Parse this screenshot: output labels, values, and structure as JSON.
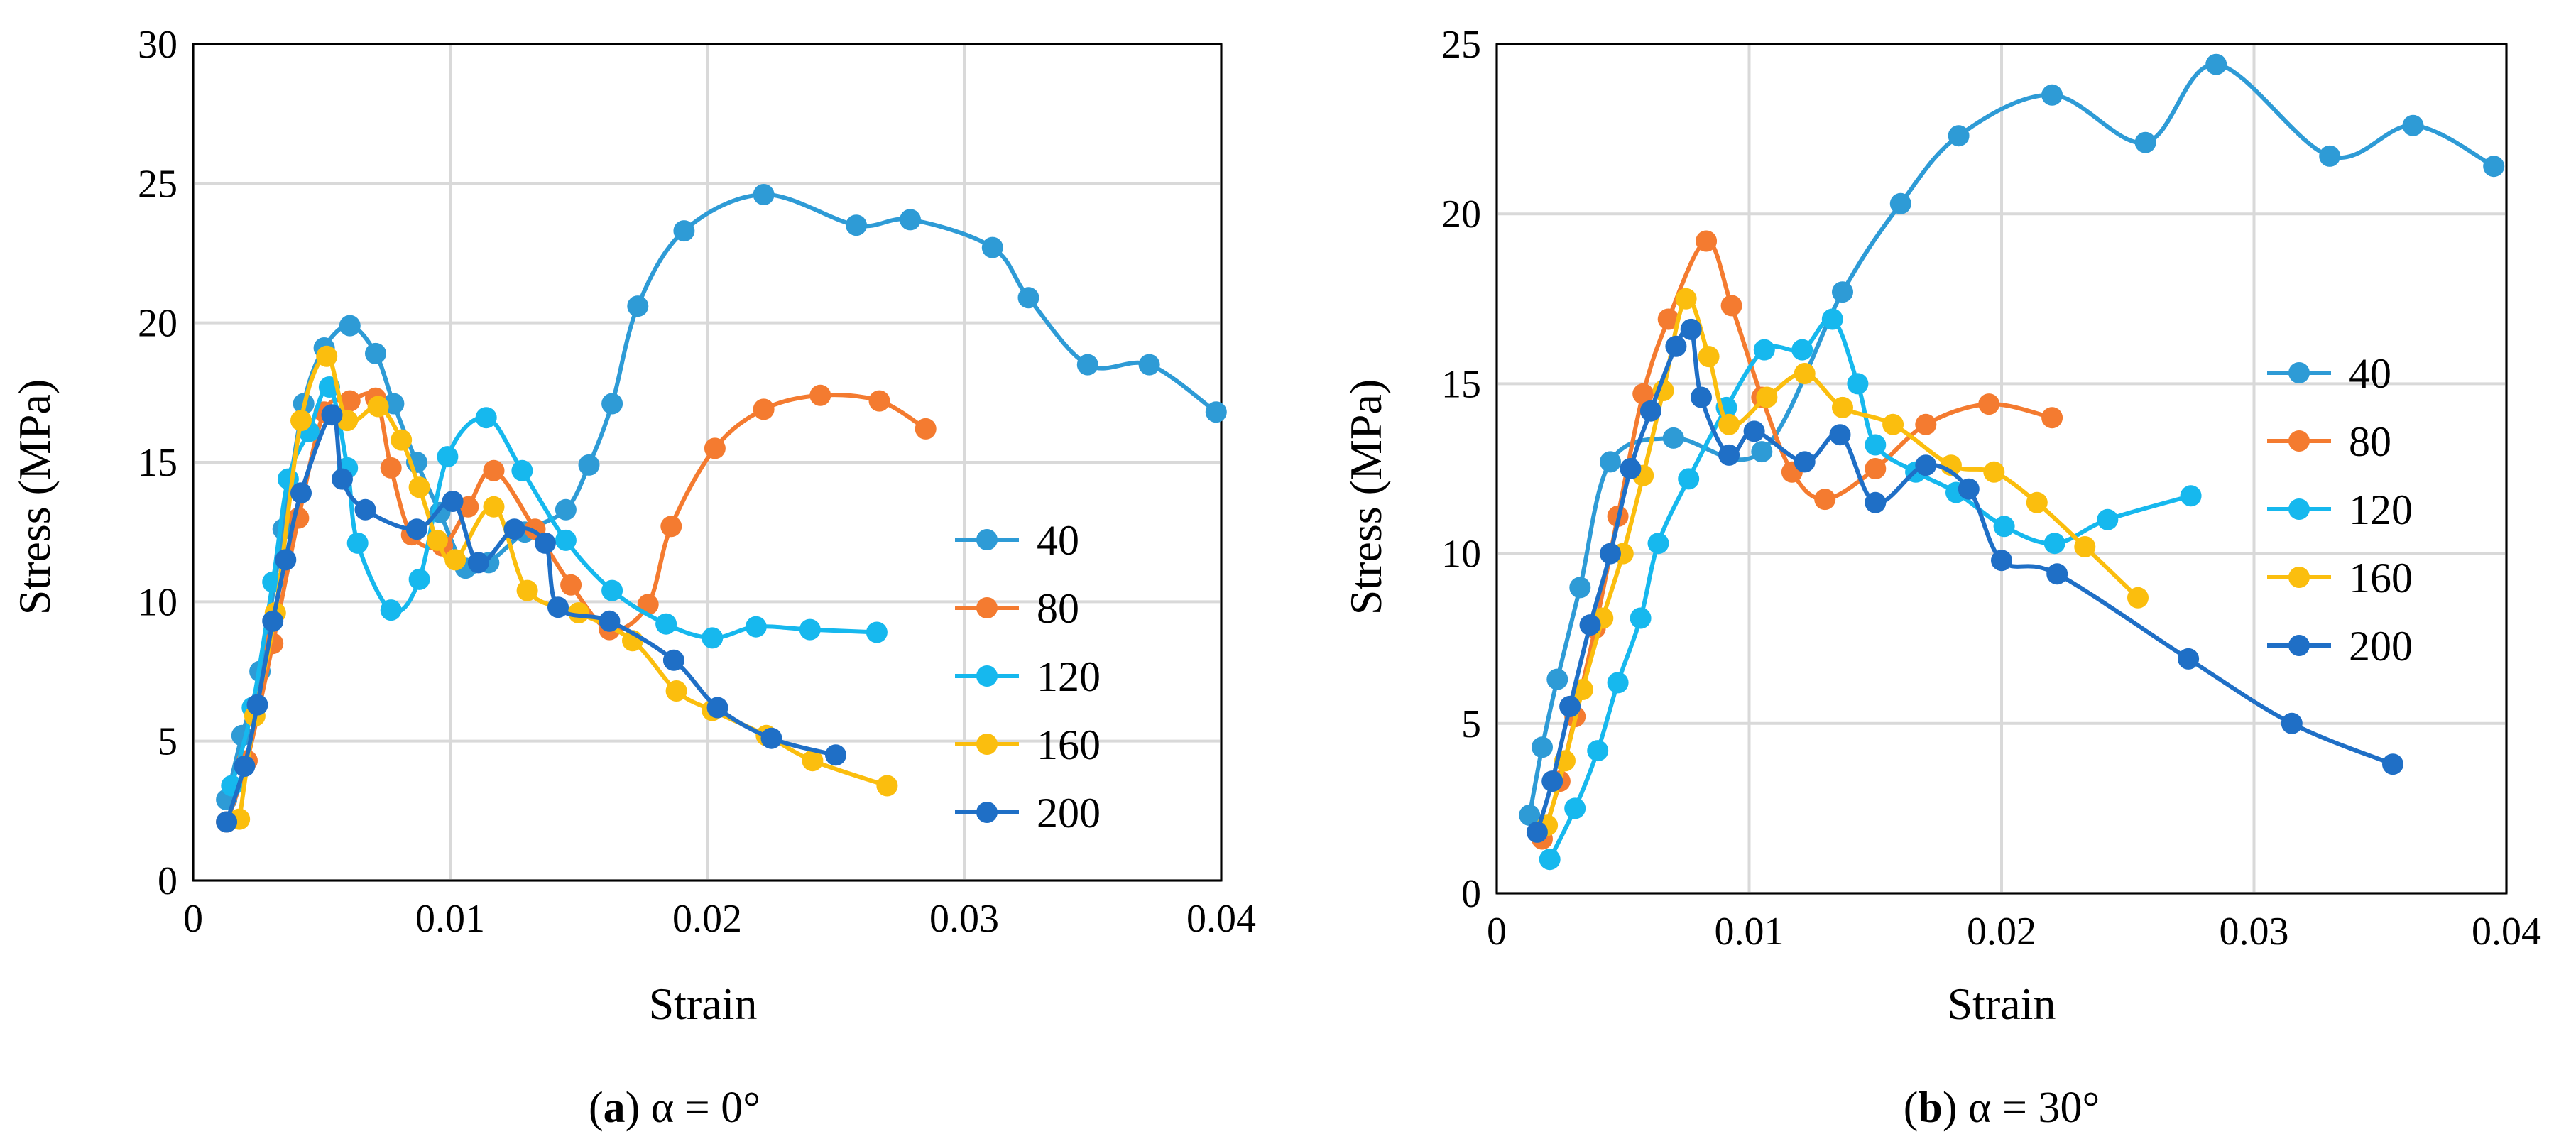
{
  "colors": {
    "40": "#2E9BD6",
    "80": "#F47B30",
    "120": "#16B8EE",
    "160": "#FBBE0E",
    "200": "#1F6FC6",
    "grid": "#D9D9D9"
  },
  "chart_data": [
    {
      "type": "line",
      "caption_letter": "a",
      "caption_rest": " α = 0°",
      "xlabel": "Strain",
      "ylabel": "Stress (MPa)",
      "xlim": [
        0,
        0.04
      ],
      "ylim": [
        0,
        30
      ],
      "xticks": [
        0,
        0.01,
        0.02,
        0.03,
        0.04
      ],
      "xtick_labels": [
        "0",
        "0.01",
        "0.02",
        "0.03",
        "0.04"
      ],
      "yticks": [
        0,
        5,
        10,
        15,
        20,
        25,
        30
      ],
      "ytick_labels": [
        "0",
        "5",
        "10",
        "15",
        "20",
        "25",
        "30"
      ],
      "grid": true,
      "legend_position": "lower-right",
      "series": [
        {
          "name": "40",
          "x": [
            0.0013,
            0.0019,
            0.0026,
            0.0035,
            0.0043,
            0.0051,
            0.0061,
            0.0071,
            0.0078,
            0.0087,
            0.0096,
            0.0106,
            0.0115,
            0.0129,
            0.0145,
            0.0154,
            0.0163,
            0.0173,
            0.0191,
            0.0222,
            0.0258,
            0.0279,
            0.0311,
            0.0325,
            0.0348,
            0.0372,
            0.0398
          ],
          "y": [
            2.9,
            5.2,
            7.5,
            12.6,
            17.1,
            19.1,
            19.9,
            18.9,
            17.1,
            15.0,
            13.2,
            11.2,
            11.4,
            12.5,
            13.3,
            14.9,
            17.1,
            20.6,
            23.3,
            24.6,
            23.5,
            23.7,
            22.7,
            20.9,
            18.5,
            18.5,
            16.8
          ]
        },
        {
          "name": "80",
          "x": [
            0.0013,
            0.0021,
            0.0031,
            0.0041,
            0.0051,
            0.0061,
            0.0071,
            0.0077,
            0.0085,
            0.0097,
            0.0107,
            0.0117,
            0.0133,
            0.0147,
            0.0162,
            0.0177,
            0.0186,
            0.0203,
            0.0222,
            0.0244,
            0.0267,
            0.0285
          ],
          "y": [
            2.1,
            4.3,
            8.5,
            13.0,
            16.8,
            17.2,
            17.3,
            14.8,
            12.4,
            12.0,
            13.4,
            14.7,
            12.6,
            10.6,
            9.0,
            9.9,
            12.7,
            15.5,
            16.9,
            17.4,
            17.2,
            16.2
          ]
        },
        {
          "name": "120",
          "x": [
            0.0015,
            0.0023,
            0.0031,
            0.0037,
            0.0045,
            0.0053,
            0.006,
            0.0064,
            0.0077,
            0.0088,
            0.0099,
            0.0114,
            0.0128,
            0.0145,
            0.0163,
            0.0184,
            0.0202,
            0.0219,
            0.024,
            0.0266
          ],
          "y": [
            3.4,
            6.2,
            10.7,
            14.4,
            16.1,
            17.7,
            14.8,
            12.1,
            9.7,
            10.8,
            15.2,
            16.6,
            14.7,
            12.2,
            10.4,
            9.2,
            8.7,
            9.1,
            9.0,
            8.9
          ]
        },
        {
          "name": "160",
          "x": [
            0.0018,
            0.0024,
            0.0032,
            0.0042,
            0.0052,
            0.006,
            0.0072,
            0.0081,
            0.0088,
            0.0095,
            0.0102,
            0.0117,
            0.013,
            0.015,
            0.0171,
            0.0188,
            0.0202,
            0.0223,
            0.0241,
            0.027
          ],
          "y": [
            2.2,
            5.9,
            9.6,
            16.5,
            18.8,
            16.5,
            17.0,
            15.8,
            14.1,
            12.2,
            11.5,
            13.4,
            10.4,
            9.6,
            8.6,
            6.8,
            6.1,
            5.2,
            4.3,
            3.4
          ]
        },
        {
          "name": "200",
          "x": [
            0.0013,
            0.002,
            0.0025,
            0.0031,
            0.0036,
            0.0042,
            0.0054,
            0.0058,
            0.0067,
            0.0087,
            0.0101,
            0.0111,
            0.0125,
            0.0137,
            0.0142,
            0.0162,
            0.0187,
            0.0204,
            0.0225,
            0.025
          ],
          "y": [
            2.1,
            4.1,
            6.3,
            9.3,
            11.5,
            13.9,
            16.7,
            14.4,
            13.3,
            12.6,
            13.6,
            11.4,
            12.6,
            12.1,
            9.8,
            9.3,
            7.9,
            6.2,
            5.1,
            4.5
          ]
        }
      ]
    },
    {
      "type": "line",
      "caption_letter": "b",
      "caption_rest": " α = 30°",
      "xlabel": "Strain",
      "ylabel": "Stress (MPa)",
      "xlim": [
        0,
        0.04
      ],
      "ylim": [
        0,
        25
      ],
      "xticks": [
        0,
        0.01,
        0.02,
        0.03,
        0.04
      ],
      "xtick_labels": [
        "0",
        "0.01",
        "0.02",
        "0.03",
        "0.04"
      ],
      "yticks": [
        0,
        5,
        10,
        15,
        20,
        25
      ],
      "ytick_labels": [
        "0",
        "5",
        "10",
        "15",
        "20",
        "25"
      ],
      "grid": true,
      "legend_position": "right",
      "series": [
        {
          "name": "40",
          "x": [
            0.0013,
            0.0018,
            0.0024,
            0.0033,
            0.0045,
            0.007,
            0.0105,
            0.0137,
            0.016,
            0.0183,
            0.022,
            0.0257,
            0.0285,
            0.033,
            0.0363,
            0.0395
          ],
          "y": [
            2.3,
            4.3,
            6.3,
            9.0,
            12.7,
            13.4,
            13.0,
            17.7,
            20.3,
            22.3,
            23.5,
            22.1,
            24.4,
            21.7,
            22.6,
            21.4
          ]
        },
        {
          "name": "80",
          "x": [
            0.0018,
            0.0025,
            0.0031,
            0.0039,
            0.0048,
            0.0058,
            0.0068,
            0.0083,
            0.0093,
            0.0105,
            0.0117,
            0.013,
            0.015,
            0.017,
            0.0195,
            0.022
          ],
          "y": [
            1.6,
            3.3,
            5.2,
            7.8,
            11.1,
            14.7,
            16.9,
            19.2,
            17.3,
            14.6,
            12.4,
            11.6,
            12.5,
            13.8,
            14.4,
            14.0
          ]
        },
        {
          "name": "120",
          "x": [
            0.0021,
            0.0031,
            0.004,
            0.0048,
            0.0057,
            0.0064,
            0.0076,
            0.0091,
            0.0106,
            0.0121,
            0.0133,
            0.0143,
            0.015,
            0.0166,
            0.0182,
            0.0201,
            0.0221,
            0.0242,
            0.0275
          ],
          "y": [
            1.0,
            2.5,
            4.2,
            6.2,
            8.1,
            10.3,
            12.2,
            14.3,
            16.0,
            16.0,
            16.9,
            15.0,
            13.2,
            12.4,
            11.8,
            10.8,
            10.3,
            11.0,
            11.7
          ]
        },
        {
          "name": "160",
          "x": [
            0.002,
            0.0027,
            0.0034,
            0.0042,
            0.005,
            0.0058,
            0.0066,
            0.0075,
            0.0084,
            0.0092,
            0.0107,
            0.0122,
            0.0137,
            0.0157,
            0.018,
            0.0197,
            0.0214,
            0.0233,
            0.0254
          ],
          "y": [
            2.0,
            3.9,
            6.0,
            8.1,
            10.0,
            12.3,
            14.8,
            17.5,
            15.8,
            13.8,
            14.6,
            15.3,
            14.3,
            13.8,
            12.6,
            12.4,
            11.5,
            10.2,
            8.7
          ]
        },
        {
          "name": "200",
          "x": [
            0.0016,
            0.0022,
            0.0029,
            0.0037,
            0.0045,
            0.0053,
            0.0061,
            0.0071,
            0.0077,
            0.0081,
            0.0092,
            0.0102,
            0.0122,
            0.0136,
            0.015,
            0.017,
            0.0187,
            0.02,
            0.0222,
            0.0274,
            0.0315,
            0.0355
          ],
          "y": [
            1.8,
            3.3,
            5.5,
            7.9,
            10.0,
            12.5,
            14.2,
            16.1,
            16.6,
            14.6,
            12.9,
            13.6,
            12.7,
            13.5,
            11.5,
            12.6,
            11.9,
            9.8,
            9.4,
            6.9,
            5.0,
            3.8
          ]
        }
      ]
    }
  ]
}
